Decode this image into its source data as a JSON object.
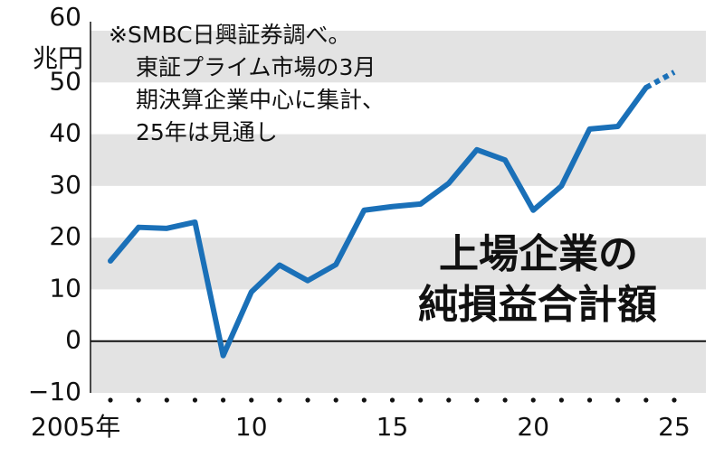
{
  "chart_data": {
    "type": "line",
    "title": [
      "上場企業の",
      "純損益合計額"
    ],
    "annotation": [
      "※SMBC日興証券調べ。",
      "東証プライム市場の3月",
      "期決算企業中心に集計、",
      "25年は見通し"
    ],
    "y_unit": "兆円",
    "x": [
      2005,
      2006,
      2007,
      2008,
      2009,
      2010,
      2011,
      2012,
      2013,
      2014,
      2015,
      2016,
      2017,
      2018,
      2019,
      2020,
      2021,
      2022,
      2023,
      2024,
      2025
    ],
    "series": [
      {
        "color": "#1a70b8",
        "dashed": false,
        "values": [
          15.5,
          22,
          21.8,
          23,
          -2.8,
          9.5,
          14.7,
          11.7,
          14.8,
          25.3,
          26,
          26.5,
          30.5,
          37,
          35,
          25.3,
          30,
          41,
          41.5,
          49,
          null
        ]
      },
      {
        "color": "#1a70b8",
        "dashed": true,
        "values": [
          null,
          null,
          null,
          null,
          null,
          null,
          null,
          null,
          null,
          null,
          null,
          null,
          null,
          null,
          null,
          null,
          null,
          null,
          null,
          49,
          52
        ]
      }
    ],
    "xlim": [
      2005,
      2025
    ],
    "ylim": [
      -10,
      60
    ],
    "yticks": [
      {
        "value": -10,
        "label": "−10"
      },
      0,
      10,
      20,
      30,
      40,
      50,
      60
    ],
    "xticks": [
      {
        "value": 2005,
        "label": "2005年"
      },
      {
        "value": 2010,
        "label": "10"
      },
      {
        "value": 2015,
        "label": "15"
      },
      {
        "value": 2020,
        "label": "20"
      },
      {
        "value": 2025,
        "label": "25"
      }
    ],
    "grid": "bands"
  }
}
